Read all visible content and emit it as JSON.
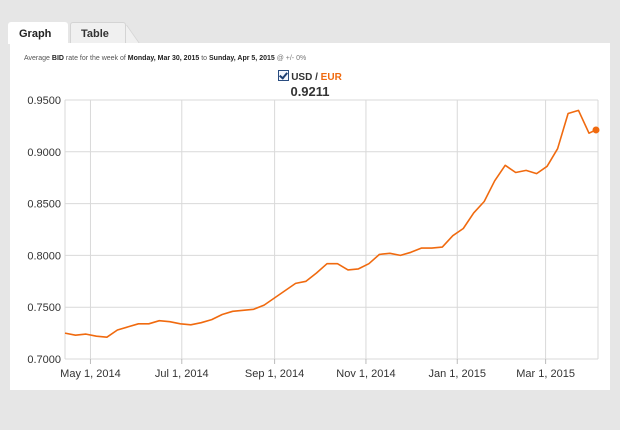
{
  "tabs": [
    {
      "label": "Graph",
      "active": true
    },
    {
      "label": "Table",
      "active": false
    }
  ],
  "caption": {
    "prefix": "Average",
    "rate_type": "BID",
    "middle": "rate for the week of",
    "start": "Monday, Mar 30, 2015",
    "to": "to",
    "end": "Sunday, Apr 5, 2015",
    "accuracy": "@ +/- 0%"
  },
  "legend": {
    "base": "USD",
    "separator": "/",
    "quote": "EUR",
    "checked": true
  },
  "current_value": "0.9211",
  "colors": {
    "line": "#f06a0f",
    "grid": "#d9d9d9",
    "background": "#e6e6e6"
  },
  "chart_data": {
    "type": "line",
    "title": "",
    "xlabel": "",
    "ylabel": "",
    "ylim": [
      0.7,
      0.95
    ],
    "xlim": [
      "2014-04-14",
      "2015-04-05"
    ],
    "y_ticks": [
      "0.7000",
      "0.7500",
      "0.8000",
      "0.8500",
      "0.9000",
      "0.9500"
    ],
    "x_ticks": [
      {
        "date": "2014-05-01",
        "label": "May 1, 2014"
      },
      {
        "date": "2014-07-01",
        "label": "Jul 1, 2014"
      },
      {
        "date": "2014-09-01",
        "label": "Sep 1, 2014"
      },
      {
        "date": "2014-11-01",
        "label": "Nov 1, 2014"
      },
      {
        "date": "2015-01-01",
        "label": "Jan 1, 2015"
      },
      {
        "date": "2015-03-01",
        "label": "Mar 1, 2015"
      }
    ],
    "grid": true,
    "series": [
      {
        "name": "USD / EUR",
        "x": [
          "2014-04-14",
          "2014-04-21",
          "2014-04-28",
          "2014-05-05",
          "2014-05-12",
          "2014-05-19",
          "2014-05-26",
          "2014-06-02",
          "2014-06-09",
          "2014-06-16",
          "2014-06-23",
          "2014-06-30",
          "2014-07-07",
          "2014-07-14",
          "2014-07-21",
          "2014-07-28",
          "2014-08-04",
          "2014-08-11",
          "2014-08-18",
          "2014-08-25",
          "2014-09-01",
          "2014-09-08",
          "2014-09-15",
          "2014-09-22",
          "2014-09-29",
          "2014-10-06",
          "2014-10-13",
          "2014-10-20",
          "2014-10-27",
          "2014-11-03",
          "2014-11-10",
          "2014-11-17",
          "2014-11-24",
          "2014-12-01",
          "2014-12-08",
          "2014-12-15",
          "2014-12-22",
          "2014-12-29",
          "2015-01-05",
          "2015-01-12",
          "2015-01-19",
          "2015-01-26",
          "2015-02-02",
          "2015-02-09",
          "2015-02-16",
          "2015-02-23",
          "2015-03-02",
          "2015-03-09",
          "2015-03-16",
          "2015-03-23",
          "2015-03-30"
        ],
        "values": [
          0.725,
          0.723,
          0.724,
          0.722,
          0.721,
          0.728,
          0.731,
          0.734,
          0.734,
          0.737,
          0.736,
          0.734,
          0.733,
          0.735,
          0.738,
          0.743,
          0.746,
          0.747,
          0.748,
          0.752,
          0.759,
          0.766,
          0.773,
          0.775,
          0.783,
          0.792,
          0.792,
          0.786,
          0.787,
          0.792,
          0.801,
          0.802,
          0.8,
          0.803,
          0.807,
          0.807,
          0.808,
          0.819,
          0.826,
          0.841,
          0.852,
          0.872,
          0.887,
          0.88,
          0.882,
          0.879,
          0.886,
          0.903,
          0.937,
          0.94,
          0.918
        ],
        "end_value": 0.9211
      }
    ]
  }
}
